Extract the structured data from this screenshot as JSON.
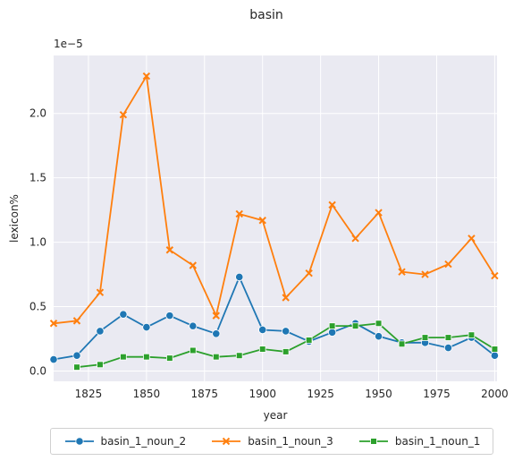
{
  "chart_data": {
    "type": "line",
    "title": "basin",
    "xlabel": "year",
    "ylabel": "lexicon%",
    "y_offset_text": "1e−5",
    "xlim": [
      1810,
      2001
    ],
    "ylim": [
      -0.08,
      2.45
    ],
    "x_ticks": [
      1825,
      1850,
      1875,
      1900,
      1925,
      1950,
      1975,
      2000
    ],
    "x_tick_labels": [
      "1825",
      "1850",
      "1875",
      "1900",
      "1925",
      "1950",
      "1975",
      "2000"
    ],
    "y_ticks": [
      0.0,
      0.5,
      1.0,
      1.5,
      2.0
    ],
    "y_tick_labels": [
      "0.0",
      "0.5",
      "1.0",
      "1.5",
      "2.0"
    ],
    "grid": true,
    "legend_position": "bottom-outside",
    "series": [
      {
        "name": "basin_1_noun_2",
        "color": "#1f77b4",
        "marker": "circle",
        "x": [
          1810,
          1820,
          1830,
          1840,
          1850,
          1860,
          1870,
          1880,
          1890,
          1900,
          1910,
          1920,
          1930,
          1940,
          1950,
          1960,
          1970,
          1980,
          1990,
          2000
        ],
        "y": [
          0.09,
          0.12,
          0.31,
          0.44,
          0.34,
          0.43,
          0.35,
          0.29,
          0.73,
          0.32,
          0.31,
          0.23,
          0.3,
          0.37,
          0.27,
          0.22,
          0.22,
          0.18,
          0.26,
          0.12
        ]
      },
      {
        "name": "basin_1_noun_3",
        "color": "#ff7f0e",
        "marker": "x",
        "x": [
          1810,
          1820,
          1830,
          1840,
          1850,
          1860,
          1870,
          1880,
          1890,
          1900,
          1910,
          1920,
          1930,
          1940,
          1950,
          1960,
          1970,
          1980,
          1990,
          2000
        ],
        "y": [
          0.37,
          0.39,
          0.61,
          1.99,
          2.29,
          0.94,
          0.82,
          0.43,
          1.22,
          1.17,
          0.57,
          0.76,
          1.29,
          1.03,
          1.23,
          0.77,
          0.75,
          0.83,
          1.03,
          0.74
        ]
      },
      {
        "name": "basin_1_noun_1",
        "color": "#2ca02c",
        "marker": "square",
        "x": [
          1820,
          1830,
          1840,
          1850,
          1860,
          1870,
          1880,
          1890,
          1900,
          1910,
          1920,
          1930,
          1940,
          1950,
          1960,
          1970,
          1980,
          1990,
          2000
        ],
        "y": [
          0.03,
          0.05,
          0.11,
          0.11,
          0.1,
          0.16,
          0.11,
          0.12,
          0.17,
          0.15,
          0.24,
          0.35,
          0.35,
          0.37,
          0.21,
          0.26,
          0.26,
          0.28,
          0.17
        ]
      }
    ]
  }
}
